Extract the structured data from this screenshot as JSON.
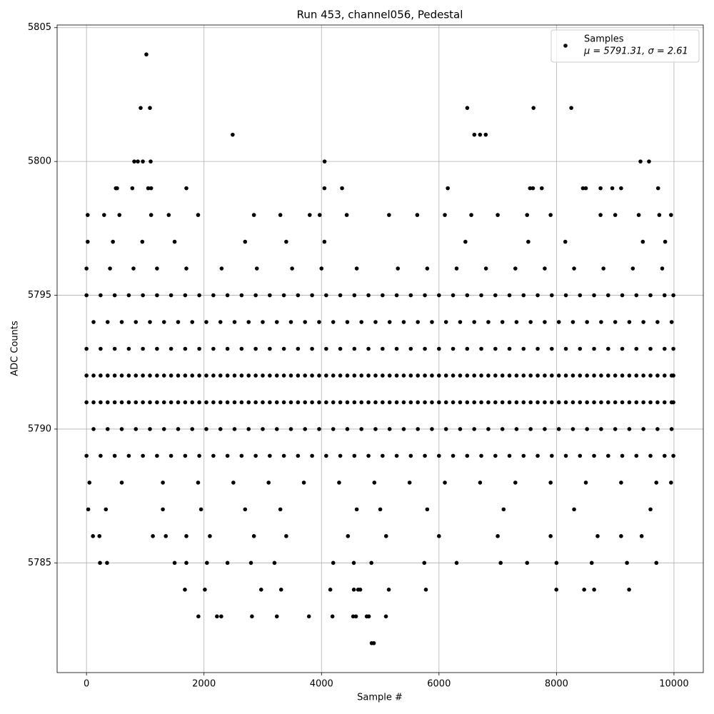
{
  "chart_data": {
    "type": "scatter",
    "title": "Run 453, channel056, Pedestal",
    "x_label": "Sample #",
    "y_label": "ADC Counts",
    "legend_note": "μ = 5791.31, σ = 2.61",
    "legend_loc": "upper right",
    "grid": true,
    "xlim": [
      -500,
      10499
    ],
    "ylim": [
      5780.9,
      5805.1
    ],
    "xticks": [
      0,
      2000,
      4000,
      6000,
      8000,
      10000
    ],
    "yticks": [
      5785,
      5790,
      5795,
      5800,
      5805
    ],
    "series": [
      {
        "name": "Samples",
        "color": "#000000",
        "x": [
          0,
          240,
          480,
          720,
          960,
          1200,
          1440,
          1680,
          1920,
          2160,
          2400,
          2640,
          2880,
          3120,
          3360,
          3600,
          3840,
          4080,
          4320,
          4560,
          4800,
          5040,
          5280,
          5520,
          5760,
          6000,
          6240,
          6480,
          6720,
          6960,
          7200,
          7440,
          7680,
          7920,
          8160,
          8400,
          8640,
          8880,
          9120,
          9360,
          9600,
          9840,
          9990,
          120,
          360,
          600,
          840,
          1080,
          1320,
          1560,
          1800,
          2040,
          2280,
          2520,
          2760,
          3000,
          3240,
          3480,
          3720,
          3960,
          4200,
          4440,
          4680,
          4920,
          5160,
          5400,
          5640,
          5880,
          6120,
          6360,
          6600,
          6840,
          7080,
          7320,
          7560,
          7800,
          8040,
          8280,
          8520,
          8760,
          9000,
          9240,
          9480,
          9720,
          9960,
          0,
          240,
          480,
          720,
          960,
          1200,
          1440,
          1680,
          1920,
          2160,
          2400,
          2640,
          2880,
          3120,
          3360,
          3600,
          3840,
          4080,
          4320,
          4560,
          4800,
          5040,
          5280,
          5520,
          5760,
          6000,
          6240,
          6480,
          6720,
          6960,
          7200,
          7440,
          7680,
          7920,
          8160,
          8400,
          8640,
          8880,
          9120,
          9360,
          9600,
          9840,
          9990,
          120,
          360,
          600,
          840,
          1080,
          1320,
          1560,
          1800,
          2040,
          2280,
          2520,
          2760,
          3000,
          3240,
          3480,
          3720,
          3960,
          4200,
          4440,
          4680,
          4920,
          5160,
          5400,
          5640,
          5880,
          6120,
          6360,
          6600,
          6840,
          7080,
          7320,
          7560,
          7800,
          8040,
          8280,
          8520,
          8760,
          9000,
          9240,
          9480,
          9720,
          9960,
          0,
          240,
          480,
          720,
          960,
          1200,
          1440,
          1680,
          1920,
          2160,
          2400,
          2640,
          2880,
          3120,
          3360,
          3600,
          3840,
          4080,
          4320,
          4560,
          4800,
          5040,
          5280,
          5520,
          5760,
          6000,
          6240,
          6480,
          6720,
          6960,
          7200,
          7440,
          7680,
          7920,
          8160,
          8400,
          8640,
          8880,
          9120,
          9360,
          9600,
          9840,
          9990,
          120,
          360,
          600,
          840,
          1080,
          1320,
          1560,
          1800,
          2040,
          2280,
          2520,
          2760,
          3000,
          3240,
          3480,
          3720,
          3960,
          4200,
          4440,
          4680,
          4920,
          5160,
          5400,
          5640,
          5880,
          6120,
          6360,
          6600,
          6840,
          7080,
          7320,
          7560,
          7800,
          8040,
          8280,
          8520,
          8760,
          9000,
          9240,
          9480,
          9720,
          9960,
          120,
          360,
          600,
          840,
          1080,
          1320,
          1560,
          1800,
          2040,
          2280,
          2520,
          2760,
          3000,
          3240,
          3480,
          3720,
          3960,
          4200,
          4440,
          4680,
          4920,
          5160,
          5400,
          5640,
          5880,
          6120,
          6360,
          6600,
          6840,
          7080,
          7320,
          7560,
          7800,
          8040,
          8280,
          8520,
          8760,
          9000,
          9240,
          9480,
          9720,
          9960,
          0,
          240,
          480,
          720,
          960,
          1200,
          1440,
          1680,
          1920,
          2160,
          2400,
          2640,
          2880,
          3120,
          3360,
          3600,
          3840,
          4080,
          4320,
          4560,
          4800,
          5040,
          5280,
          5520,
          5760,
          6000,
          6240,
          6480,
          6720,
          6960,
          7200,
          7440,
          7680,
          7920,
          8160,
          8400,
          8640,
          8880,
          9120,
          9360,
          9600,
          9840,
          9990,
          0,
          240,
          480,
          720,
          960,
          1200,
          1440,
          1680,
          1920,
          2160,
          2400,
          2640,
          2880,
          3120,
          3360,
          3600,
          3840,
          4080,
          4320,
          4560,
          4800,
          5040,
          5280,
          5520,
          5760,
          6000,
          6240,
          6480,
          6720,
          6960,
          7200,
          7440,
          7680,
          7920,
          8160,
          8400,
          8640,
          8880,
          9120,
          9360,
          9600,
          9840,
          9990,
          0,
          400,
          800,
          1200,
          1700,
          2300,
          2900,
          3500,
          4000,
          4600,
          5300,
          5800,
          6300,
          6800,
          7300,
          7800,
          8300,
          8800,
          9300,
          9800,
          50,
          600,
          1300,
          1900,
          2500,
          3100,
          3700,
          4300,
          4900,
          5500,
          6100,
          6700,
          7300,
          7900,
          8500,
          9100,
          9700,
          9950,
          20,
          450,
          950,
          1500,
          2700,
          3400,
          4050,
          6450,
          7520,
          8150,
          9470,
          9850,
          30,
          330,
          1300,
          1950,
          2700,
          3300,
          4600,
          5000,
          5800,
          7100,
          8300,
          9600,
          110,
          220,
          1130,
          1350,
          1700,
          2100,
          2850,
          3400,
          4450,
          5100,
          6000,
          7000,
          7900,
          8700,
          9100,
          9450,
          230,
          350,
          1500,
          1700,
          2050,
          2400,
          2800,
          3200,
          4200,
          4550,
          4850,
          5750,
          6300,
          7050,
          7500,
          8000,
          8600,
          9200,
          9700,
          20,
          300,
          560,
          1100,
          1400,
          1900,
          2850,
          3300,
          3800,
          3970,
          4430,
          5150,
          5630,
          6100,
          6550,
          7000,
          7500,
          7900,
          8750,
          9000,
          9400,
          9750,
          9950,
          500,
          520,
          780,
          1050,
          1100,
          1700,
          4050,
          4350,
          6150,
          7550,
          7600,
          7750,
          8450,
          8500,
          8750,
          8950,
          9100,
          9730,
          813,
          874,
          959,
          1092,
          4053,
          9430,
          9575,
          2488,
          6602,
          6699,
          6796,
          922,
          1080,
          6481,
          7609,
          8252,
          1019,
          1675,
          2015,
          2973,
          3313,
          4150,
          4551,
          4624,
          4660,
          5146,
          5777,
          7998,
          8471,
          8641,
          9236,
          1905,
          2221,
          2294,
          2816,
          3240,
          3786,
          4187,
          4539,
          4587,
          4770,
          4806,
          5097,
          4854,
          4891
        ],
        "values": [
          5791,
          5791,
          5791,
          5791,
          5791,
          5791,
          5791,
          5791,
          5791,
          5791,
          5791,
          5791,
          5791,
          5791,
          5791,
          5791,
          5791,
          5791,
          5791,
          5791,
          5791,
          5791,
          5791,
          5791,
          5791,
          5791,
          5791,
          5791,
          5791,
          5791,
          5791,
          5791,
          5791,
          5791,
          5791,
          5791,
          5791,
          5791,
          5791,
          5791,
          5791,
          5791,
          5791,
          5791,
          5791,
          5791,
          5791,
          5791,
          5791,
          5791,
          5791,
          5791,
          5791,
          5791,
          5791,
          5791,
          5791,
          5791,
          5791,
          5791,
          5791,
          5791,
          5791,
          5791,
          5791,
          5791,
          5791,
          5791,
          5791,
          5791,
          5791,
          5791,
          5791,
          5791,
          5791,
          5791,
          5791,
          5791,
          5791,
          5791,
          5791,
          5791,
          5791,
          5791,
          5791,
          5792,
          5792,
          5792,
          5792,
          5792,
          5792,
          5792,
          5792,
          5792,
          5792,
          5792,
          5792,
          5792,
          5792,
          5792,
          5792,
          5792,
          5792,
          5792,
          5792,
          5792,
          5792,
          5792,
          5792,
          5792,
          5792,
          5792,
          5792,
          5792,
          5792,
          5792,
          5792,
          5792,
          5792,
          5792,
          5792,
          5792,
          5792,
          5792,
          5792,
          5792,
          5792,
          5792,
          5792,
          5792,
          5792,
          5792,
          5792,
          5792,
          5792,
          5792,
          5792,
          5792,
          5792,
          5792,
          5792,
          5792,
          5792,
          5792,
          5792,
          5792,
          5792,
          5792,
          5792,
          5792,
          5792,
          5792,
          5792,
          5792,
          5792,
          5792,
          5792,
          5792,
          5792,
          5792,
          5792,
          5792,
          5792,
          5792,
          5792,
          5792,
          5792,
          5792,
          5792,
          5792,
          5793,
          5793,
          5793,
          5793,
          5793,
          5793,
          5793,
          5793,
          5793,
          5793,
          5793,
          5793,
          5793,
          5793,
          5793,
          5793,
          5793,
          5793,
          5793,
          5793,
          5793,
          5793,
          5793,
          5793,
          5793,
          5793,
          5793,
          5793,
          5793,
          5793,
          5793,
          5793,
          5793,
          5793,
          5793,
          5793,
          5793,
          5793,
          5793,
          5793,
          5793,
          5793,
          5793,
          5794,
          5794,
          5794,
          5794,
          5794,
          5794,
          5794,
          5794,
          5794,
          5794,
          5794,
          5794,
          5794,
          5794,
          5794,
          5794,
          5794,
          5794,
          5794,
          5794,
          5794,
          5794,
          5794,
          5794,
          5794,
          5794,
          5794,
          5794,
          5794,
          5794,
          5794,
          5794,
          5794,
          5794,
          5794,
          5794,
          5794,
          5794,
          5794,
          5794,
          5794,
          5794,
          5790,
          5790,
          5790,
          5790,
          5790,
          5790,
          5790,
          5790,
          5790,
          5790,
          5790,
          5790,
          5790,
          5790,
          5790,
          5790,
          5790,
          5790,
          5790,
          5790,
          5790,
          5790,
          5790,
          5790,
          5790,
          5790,
          5790,
          5790,
          5790,
          5790,
          5790,
          5790,
          5790,
          5790,
          5790,
          5790,
          5790,
          5790,
          5790,
          5790,
          5790,
          5790,
          5789,
          5789,
          5789,
          5789,
          5789,
          5789,
          5789,
          5789,
          5789,
          5789,
          5789,
          5789,
          5789,
          5789,
          5789,
          5789,
          5789,
          5789,
          5789,
          5789,
          5789,
          5789,
          5789,
          5789,
          5789,
          5789,
          5789,
          5789,
          5789,
          5789,
          5789,
          5789,
          5789,
          5789,
          5789,
          5789,
          5789,
          5789,
          5789,
          5789,
          5789,
          5789,
          5789,
          5795,
          5795,
          5795,
          5795,
          5795,
          5795,
          5795,
          5795,
          5795,
          5795,
          5795,
          5795,
          5795,
          5795,
          5795,
          5795,
          5795,
          5795,
          5795,
          5795,
          5795,
          5795,
          5795,
          5795,
          5795,
          5795,
          5795,
          5795,
          5795,
          5795,
          5795,
          5795,
          5795,
          5795,
          5795,
          5795,
          5795,
          5795,
          5795,
          5795,
          5795,
          5795,
          5795,
          5796,
          5796,
          5796,
          5796,
          5796,
          5796,
          5796,
          5796,
          5796,
          5796,
          5796,
          5796,
          5796,
          5796,
          5796,
          5796,
          5796,
          5796,
          5796,
          5796,
          5788,
          5788,
          5788,
          5788,
          5788,
          5788,
          5788,
          5788,
          5788,
          5788,
          5788,
          5788,
          5788,
          5788,
          5788,
          5788,
          5788,
          5788,
          5797,
          5797,
          5797,
          5797,
          5797,
          5797,
          5797,
          5797,
          5797,
          5797,
          5797,
          5797,
          5787,
          5787,
          5787,
          5787,
          5787,
          5787,
          5787,
          5787,
          5787,
          5787,
          5787,
          5787,
          5786,
          5786,
          5786,
          5786,
          5786,
          5786,
          5786,
          5786,
          5786,
          5786,
          5786,
          5786,
          5786,
          5786,
          5786,
          5786,
          5785,
          5785,
          5785,
          5785,
          5785,
          5785,
          5785,
          5785,
          5785,
          5785,
          5785,
          5785,
          5785,
          5785,
          5785,
          5785,
          5785,
          5785,
          5785,
          5798,
          5798,
          5798,
          5798,
          5798,
          5798,
          5798,
          5798,
          5798,
          5798,
          5798,
          5798,
          5798,
          5798,
          5798,
          5798,
          5798,
          5798,
          5798,
          5798,
          5798,
          5798,
          5798,
          5799,
          5799,
          5799,
          5799,
          5799,
          5799,
          5799,
          5799,
          5799,
          5799,
          5799,
          5799,
          5799,
          5799,
          5799,
          5799,
          5799,
          5799,
          5800,
          5800,
          5800,
          5800,
          5800,
          5800,
          5800,
          5801,
          5801,
          5801,
          5801,
          5802,
          5802,
          5802,
          5802,
          5802,
          5804,
          5784,
          5784,
          5784,
          5784,
          5784,
          5784,
          5784,
          5784,
          5784,
          5784,
          5784,
          5784,
          5784,
          5784,
          5783,
          5783,
          5783,
          5783,
          5783,
          5783,
          5783,
          5783,
          5783,
          5783,
          5783,
          5783,
          5782,
          5782
        ]
      }
    ]
  }
}
